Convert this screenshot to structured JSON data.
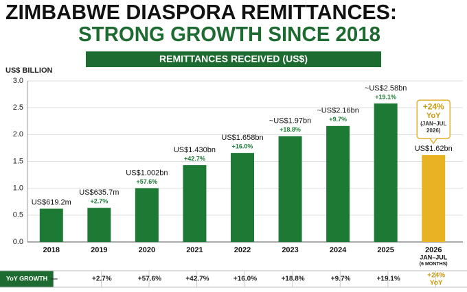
{
  "chart_data": {
    "type": "bar",
    "title": "ZIMBABWE DIASPORA REMITTANCES:",
    "subtitle": "STRONG GROWTH SINCE 2018",
    "banner": "REMITTANCES RECEIVED (US$)",
    "y_label": "US$ BILLION",
    "categories": [
      "2018",
      "2019",
      "2020",
      "2021",
      "2022",
      "2023",
      "2024",
      "2025",
      "2026"
    ],
    "category_note": [
      "JAN–JUL",
      "(6 MONTHS)"
    ],
    "values": [
      0.6192,
      0.6357,
      1.002,
      1.43,
      1.658,
      1.97,
      2.16,
      2.58,
      1.62
    ],
    "value_labels": [
      "US$619.2m",
      "US$635.7m",
      "US$1.002bn",
      "US$1.430bn",
      "US$1.658bn",
      "~US$1.97bn",
      "~US$2.16bn",
      "~US$2.58bn",
      "US$1.62bn"
    ],
    "colors": [
      "#1d7a35",
      "#1d7a35",
      "#1d7a35",
      "#1d7a35",
      "#1d7a35",
      "#1d7a35",
      "#1d7a35",
      "#1d7a35",
      "#e8b322"
    ],
    "growth_label": "YoY GROWTH",
    "growth": [
      "—",
      "+2.7%",
      "+57.6%",
      "+42.7%",
      "+16.0%",
      "+18.8%",
      "+9.7%",
      "+19.1%",
      "+24%"
    ],
    "callout": [
      "+24%",
      "YoY",
      "(JAN–JUL",
      "2026)"
    ],
    "ylim": [
      0,
      3
    ],
    "yticks": [
      {
        "value": 0,
        "label": "0.0"
      },
      {
        "value": 0.5,
        "label": "0.5"
      },
      {
        "value": 1,
        "label": "1.0"
      },
      {
        "value": 1.5,
        "label": "1.5"
      },
      {
        "value": 2,
        "label": "2.0"
      },
      {
        "value": 2.5,
        "label": "2.5"
      },
      {
        "value": 3,
        "label": "3.0"
      }
    ],
    "grid": true
  }
}
